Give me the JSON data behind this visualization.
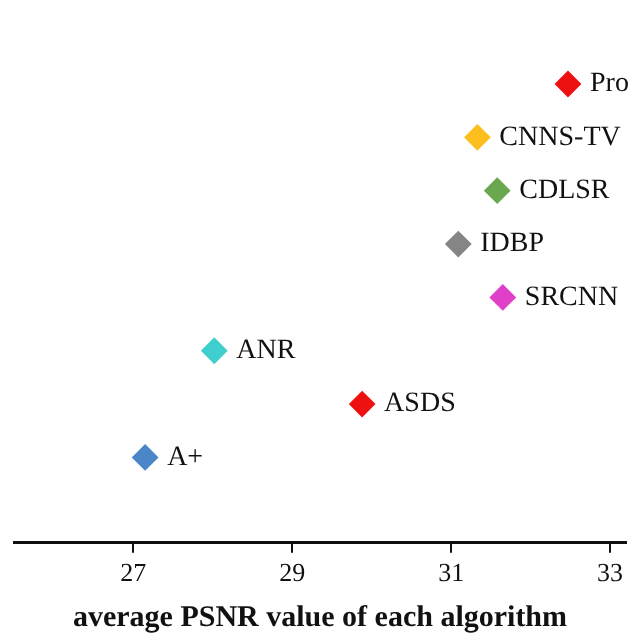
{
  "chart_data": {
    "type": "scatter",
    "orientation": "horizontal",
    "xlabel": "average PSNR value of each algorithm",
    "xlim": [
      25.5,
      33.2
    ],
    "xticks": [
      27,
      29,
      31,
      33
    ],
    "grid": false,
    "marker": "diamond",
    "categories": [
      "Pro",
      "CNNS-TV",
      "CDLSR",
      "IDBP",
      "SRCNN",
      "ANR",
      "ASDS",
      "A+"
    ],
    "values": [
      32.47,
      31.33,
      31.58,
      31.09,
      31.65,
      28.02,
      29.88,
      27.15
    ],
    "colors": [
      "#ee1111",
      "#fcbf1e",
      "#6aa84f",
      "#858585",
      "#e040c8",
      "#3fcfcf",
      "#ee1111",
      "#4a86c8"
    ]
  }
}
